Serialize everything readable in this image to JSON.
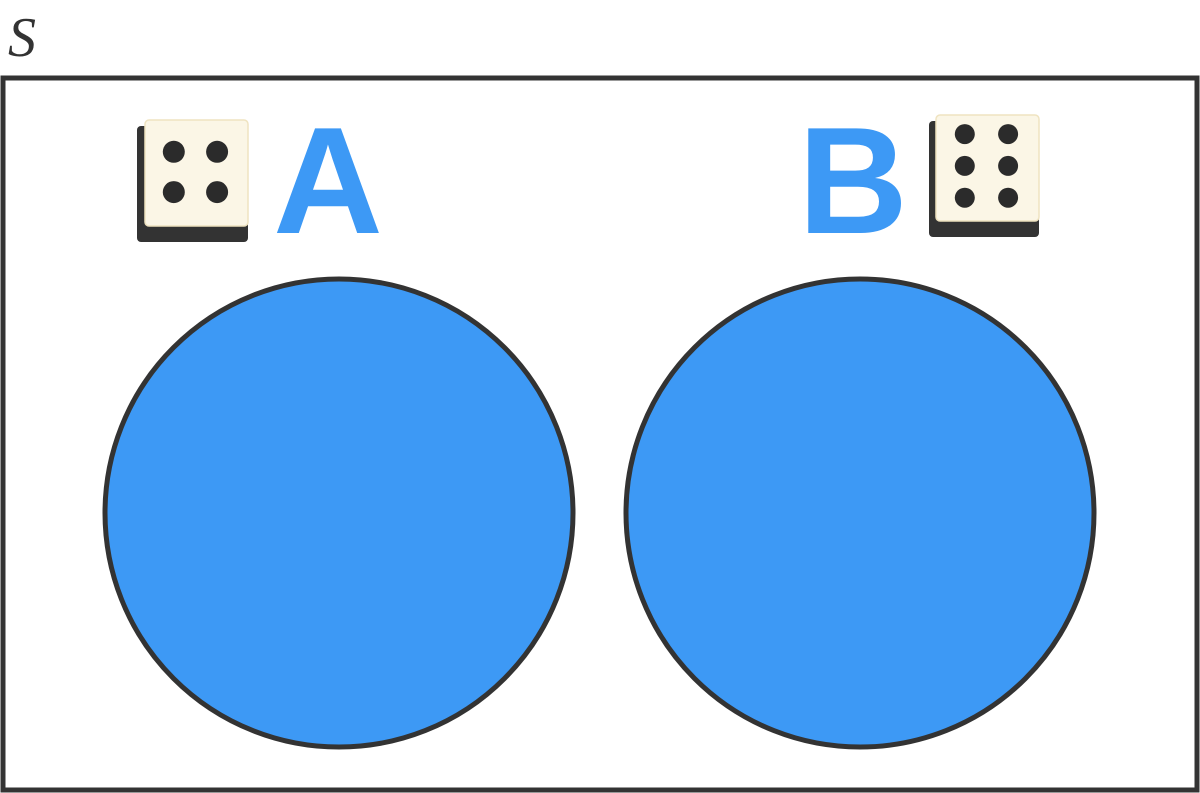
{
  "universe": {
    "label": "S"
  },
  "sets": [
    {
      "id": "a",
      "label": "A",
      "die_face": 4
    },
    {
      "id": "b",
      "label": "B",
      "die_face": 6
    }
  ],
  "colors": {
    "set_fill": "#3d99f5",
    "label": "#3d99f5",
    "outline": "#333333",
    "universe_label": "#333333",
    "die_face": "#fbf6e6",
    "die_shadow": "#333333",
    "pip": "#2b2b2b",
    "background": "#ffffff"
  }
}
